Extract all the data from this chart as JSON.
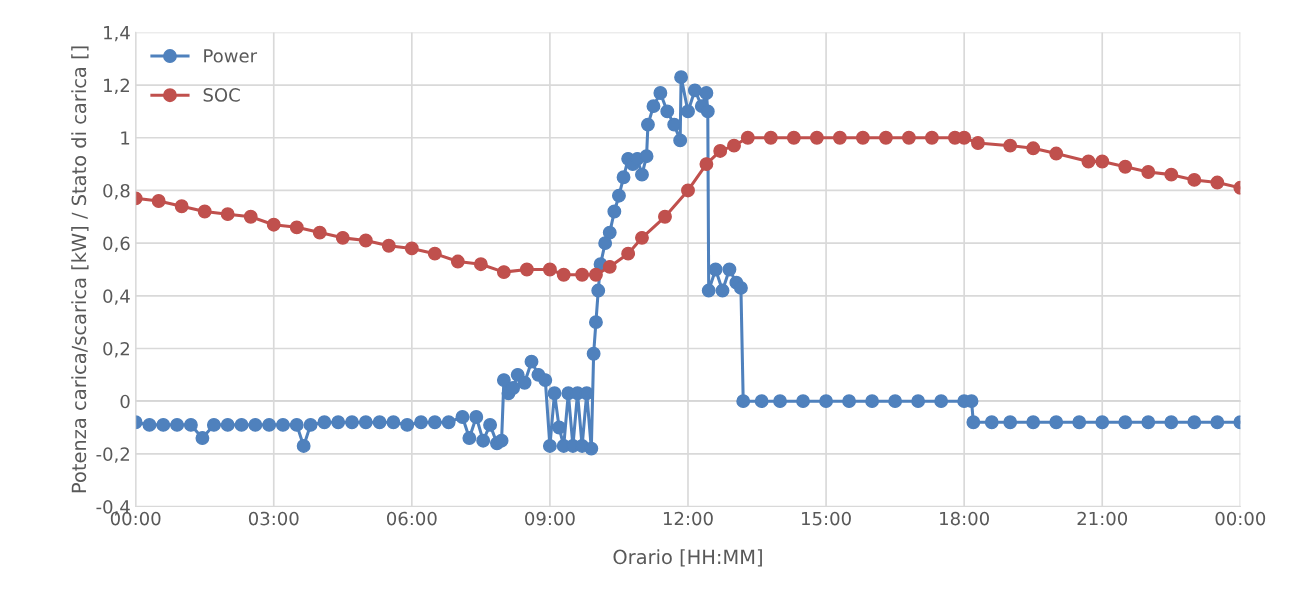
{
  "chart_data": {
    "type": "line",
    "xlabel": "Orario [HH:MM]",
    "ylabel": "Potenza carica/scarica [kW] / Stato di carica []",
    "xlim": [
      0,
      24
    ],
    "ylim": [
      -0.4,
      1.4
    ],
    "xticks": [
      {
        "value": 0,
        "label": "00:00"
      },
      {
        "value": 3,
        "label": "03:00"
      },
      {
        "value": 6,
        "label": "06:00"
      },
      {
        "value": 9,
        "label": "09:00"
      },
      {
        "value": 12,
        "label": "12:00"
      },
      {
        "value": 15,
        "label": "15:00"
      },
      {
        "value": 18,
        "label": "18:00"
      },
      {
        "value": 21,
        "label": "21:00"
      },
      {
        "value": 24,
        "label": "00:00"
      }
    ],
    "yticks": [
      {
        "value": -0.4,
        "label": "-0,4"
      },
      {
        "value": -0.2,
        "label": "-0,2"
      },
      0,
      {
        "value": 0.2,
        "label": "0,2"
      },
      {
        "value": 0.4,
        "label": "0,4"
      },
      {
        "value": 0.6,
        "label": "0,6"
      },
      {
        "value": 0.8,
        "label": "0,8"
      },
      1,
      {
        "value": 1.2,
        "label": "1,2"
      },
      {
        "value": 1.4,
        "label": "1,4"
      }
    ],
    "grid": true,
    "legend": "top left",
    "marker": "circle",
    "line_style": "solid",
    "series": [
      {
        "name": "Power",
        "color": "#4f81bd",
        "x": [
          0,
          0.3,
          0.6,
          0.9,
          1.2,
          1.45,
          1.7,
          2.0,
          2.3,
          2.6,
          2.9,
          3.2,
          3.5,
          3.65,
          3.8,
          4.1,
          4.4,
          4.7,
          5.0,
          5.3,
          5.6,
          5.9,
          6.2,
          6.5,
          6.8,
          7.1,
          7.25,
          7.4,
          7.55,
          7.7,
          7.85,
          7.95,
          8.0,
          8.1,
          8.2,
          8.3,
          8.45,
          8.6,
          8.75,
          8.9,
          9.0,
          9.1,
          9.2,
          9.3,
          9.4,
          9.5,
          9.6,
          9.7,
          9.8,
          9.9,
          9.95,
          10.0,
          10.05,
          10.1,
          10.2,
          10.3,
          10.4,
          10.5,
          10.6,
          10.7,
          10.8,
          10.9,
          11.0,
          11.1,
          11.13,
          11.25,
          11.4,
          11.55,
          11.7,
          11.83,
          11.85,
          12.0,
          12.15,
          12.3,
          12.4,
          12.43,
          12.45,
          12.6,
          12.75,
          12.9,
          13.05,
          13.15,
          13.2,
          13.6,
          14.0,
          14.5,
          15.0,
          15.5,
          16.0,
          16.5,
          17.0,
          17.5,
          18.0,
          18.16,
          18.2,
          18.6,
          19.0,
          19.5,
          20.0,
          20.5,
          21.0,
          21.5,
          22.0,
          22.5,
          23.0,
          23.5,
          24.0
        ],
        "values": [
          -0.08,
          -0.09,
          -0.09,
          -0.09,
          -0.09,
          -0.14,
          -0.09,
          -0.09,
          -0.09,
          -0.09,
          -0.09,
          -0.09,
          -0.09,
          -0.17,
          -0.09,
          -0.08,
          -0.08,
          -0.08,
          -0.08,
          -0.08,
          -0.08,
          -0.09,
          -0.08,
          -0.08,
          -0.08,
          -0.06,
          -0.14,
          -0.06,
          -0.15,
          -0.09,
          -0.16,
          -0.15,
          0.08,
          0.03,
          0.05,
          0.1,
          0.07,
          0.15,
          0.1,
          0.08,
          -0.17,
          0.03,
          -0.1,
          -0.17,
          0.03,
          -0.17,
          0.03,
          -0.17,
          0.03,
          -0.18,
          0.18,
          0.3,
          0.42,
          0.52,
          0.6,
          0.64,
          0.72,
          0.78,
          0.85,
          0.92,
          0.9,
          0.92,
          0.86,
          0.93,
          1.05,
          1.12,
          1.17,
          1.1,
          1.05,
          0.99,
          1.23,
          1.1,
          1.18,
          1.12,
          1.17,
          1.1,
          0.42,
          0.5,
          0.42,
          0.5,
          0.45,
          0.43,
          0,
          0,
          0,
          0,
          0,
          0,
          0,
          0,
          0,
          0,
          0,
          0,
          -0.08,
          -0.08,
          -0.08,
          -0.08,
          -0.08,
          -0.08,
          -0.08,
          -0.08,
          -0.08,
          -0.08,
          -0.08,
          -0.08,
          -0.08
        ]
      },
      {
        "name": "SOC",
        "color": "#c0504d",
        "x": [
          0,
          0.5,
          1,
          1.5,
          2,
          2.5,
          3,
          3.5,
          4,
          4.5,
          5,
          5.5,
          6,
          6.5,
          7,
          7.5,
          8,
          8.5,
          9,
          9.3,
          9.7,
          10,
          10.3,
          10.7,
          11,
          11.5,
          12,
          12.4,
          12.7,
          13,
          13.3,
          13.8,
          14.3,
          14.8,
          15.3,
          15.8,
          16.3,
          16.8,
          17.3,
          17.8,
          18,
          18.3,
          19,
          19.5,
          20,
          20.7,
          21,
          21.5,
          22,
          22.5,
          23,
          23.5,
          24
        ],
        "values": [
          0.77,
          0.76,
          0.74,
          0.72,
          0.71,
          0.7,
          0.67,
          0.66,
          0.64,
          0.62,
          0.61,
          0.59,
          0.58,
          0.56,
          0.53,
          0.52,
          0.49,
          0.5,
          0.5,
          0.48,
          0.48,
          0.48,
          0.51,
          0.56,
          0.62,
          0.7,
          0.8,
          0.9,
          0.95,
          0.97,
          1.0,
          1.0,
          1.0,
          1.0,
          1.0,
          1.0,
          1.0,
          1.0,
          1.0,
          1.0,
          1.0,
          0.98,
          0.97,
          0.96,
          0.94,
          0.91,
          0.91,
          0.89,
          0.87,
          0.86,
          0.84,
          0.83,
          0.81
        ]
      }
    ]
  }
}
